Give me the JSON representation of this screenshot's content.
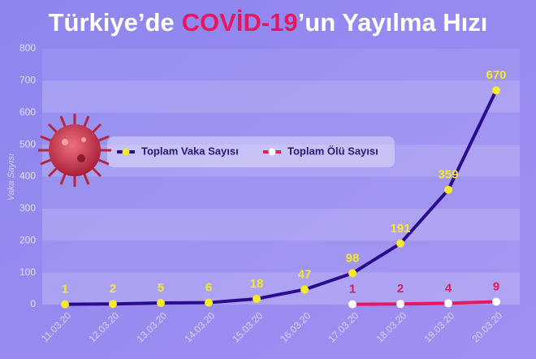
{
  "chart_data": {
    "type": "line",
    "title": [
      "Türkiye’de",
      "COVİD-19",
      "’un Yayılma Hızı"
    ],
    "y_label": "Vaka Sayısı",
    "categories": [
      "11.03.20",
      "12.03.20",
      "13.03.20",
      "14.03.20",
      "15.03.20",
      "16.03.20",
      "17.03.20",
      "18.03.20",
      "19.03.20",
      "20.03.20"
    ],
    "series": [
      {
        "name": "Toplam Vaka Sayısı",
        "color": "#2b0c8f",
        "marker_color": "#f4e92c",
        "label_color": "#f4e92c",
        "values": [
          1,
          2,
          5,
          6,
          18,
          47,
          98,
          191,
          359,
          670
        ]
      },
      {
        "name": "Toplam Ölü Sayısı",
        "color": "#e8175d",
        "marker_color": "#ffffff",
        "label_color": "#e0185a",
        "values": [
          null,
          null,
          null,
          null,
          null,
          null,
          1,
          2,
          4,
          9
        ]
      }
    ],
    "ylim": [
      0,
      800
    ],
    "yticks": [
      0,
      100,
      200,
      300,
      400,
      500,
      600,
      700,
      800
    ],
    "grid": true
  }
}
